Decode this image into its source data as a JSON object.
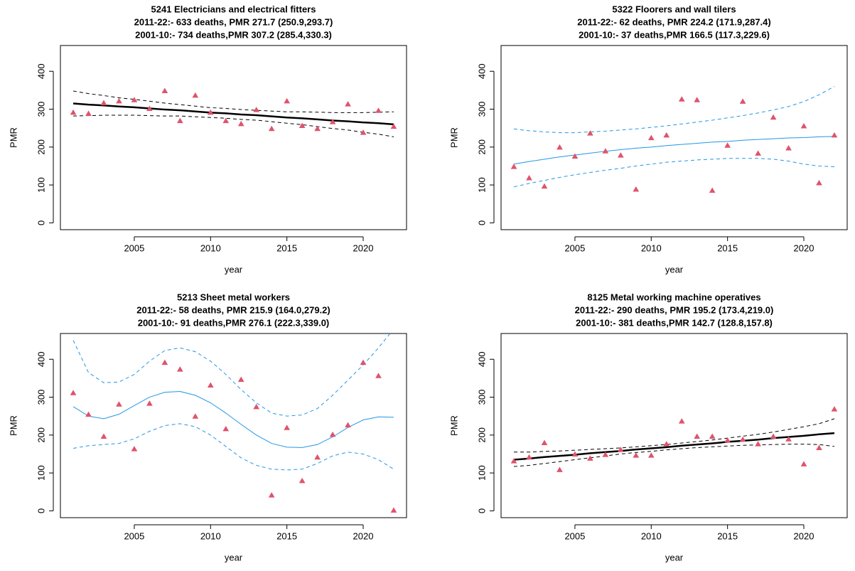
{
  "chart_data": [
    {
      "type": "scatter",
      "title": "5241 Electricians and electrical fitters",
      "subtitle": [
        "2011-22:- 633 deaths, PMR 271.7 (250.9,293.7)",
        "2001-10:- 734 deaths,PMR 307.2 (285.4,330.3)"
      ],
      "xlabel": "year",
      "ylabel": "PMR",
      "marker": "triangle",
      "color": "#DF536B",
      "x": [
        2001,
        2002,
        2003,
        2004,
        2005,
        2006,
        2007,
        2008,
        2009,
        2010,
        2011,
        2012,
        2013,
        2014,
        2015,
        2016,
        2017,
        2018,
        2019,
        2020,
        2021,
        2022
      ],
      "values": [
        290,
        287,
        315,
        320,
        323,
        300,
        347,
        268,
        335,
        290,
        268,
        260,
        297,
        247,
        320,
        255,
        247,
        265,
        312,
        237,
        295,
        253
      ],
      "series": [
        {
          "color": "#000000",
          "dash": "solid",
          "width": 2.5,
          "values": [
            315,
            312,
            310,
            307,
            305,
            302,
            299,
            297,
            294,
            291,
            289,
            286,
            284,
            281,
            278,
            276,
            273,
            270,
            268,
            265,
            263,
            260
          ]
        },
        {
          "color": "#000000",
          "dash": "dashed",
          "width": 1,
          "values": [
            348,
            341,
            336,
            330,
            326,
            321,
            316,
            312,
            308,
            304,
            302,
            299,
            297,
            295,
            293,
            293,
            292,
            291,
            291,
            291,
            292,
            293
          ]
        },
        {
          "color": "#000000",
          "dash": "dashed",
          "width": 1,
          "values": [
            282,
            283,
            284,
            284,
            284,
            283,
            282,
            282,
            280,
            278,
            276,
            273,
            271,
            267,
            263,
            259,
            254,
            249,
            245,
            239,
            234,
            227
          ]
        }
      ],
      "xlim": [
        2000.16,
        2022.84
      ],
      "ylim": [
        -18,
        468
      ],
      "xticks": [
        2005,
        2010,
        2015,
        2020
      ],
      "yticks": [
        0,
        100,
        200,
        300,
        400
      ]
    },
    {
      "type": "scatter",
      "title": "5322 Floorers and wall tilers",
      "subtitle": [
        "2011-22:- 62 deaths, PMR 224.2 (171.9,287.4)",
        "2001-10:- 37 deaths,PMR 166.5 (117.3,229.6)"
      ],
      "xlabel": "year",
      "ylabel": "PMR",
      "marker": "triangle",
      "color": "#DF536B",
      "x": [
        2001,
        2002,
        2003,
        2004,
        2005,
        2006,
        2007,
        2008,
        2009,
        2010,
        2011,
        2012,
        2013,
        2014,
        2015,
        2016,
        2017,
        2018,
        2019,
        2020,
        2021,
        2022
      ],
      "values": [
        147,
        117,
        95,
        198,
        174,
        235,
        188,
        177,
        87,
        223,
        230,
        325,
        323,
        84,
        203,
        319,
        182,
        277,
        196,
        254,
        104,
        230
      ],
      "series": [
        {
          "color": "#2297E6",
          "dash": "solid",
          "width": 1,
          "values": [
            155,
            162,
            168,
            174,
            179,
            184,
            189,
            193,
            197,
            200,
            204,
            207,
            210,
            213,
            215,
            218,
            220,
            222,
            224,
            225,
            227,
            228
          ]
        },
        {
          "color": "#2297E6",
          "dash": "dashed",
          "width": 1,
          "values": [
            248,
            243,
            240,
            238,
            238,
            240,
            242,
            245,
            248,
            252,
            256,
            261,
            266,
            271,
            277,
            283,
            290,
            298,
            307,
            320,
            338,
            360
          ]
        },
        {
          "color": "#2297E6",
          "dash": "dashed",
          "width": 1,
          "values": [
            95,
            104,
            112,
            120,
            127,
            133,
            139,
            144,
            150,
            155,
            160,
            163,
            166,
            168,
            170,
            170,
            170,
            168,
            163,
            155,
            150,
            148
          ]
        }
      ],
      "xlim": [
        2000.16,
        2022.84
      ],
      "ylim": [
        -18,
        468
      ],
      "xticks": [
        2005,
        2010,
        2015,
        2020
      ],
      "yticks": [
        0,
        100,
        200,
        300,
        400
      ]
    },
    {
      "type": "scatter",
      "title": "5213 Sheet metal workers",
      "subtitle": [
        "2011-22:- 58 deaths, PMR 215.9 (164.0,279.2)",
        "2001-10:- 91 deaths,PMR 276.1 (222.3,339.0)"
      ],
      "xlabel": "year",
      "ylabel": "PMR",
      "marker": "triangle",
      "color": "#DF536B",
      "x": [
        2001,
        2002,
        2003,
        2004,
        2005,
        2006,
        2007,
        2008,
        2009,
        2010,
        2011,
        2012,
        2013,
        2014,
        2015,
        2016,
        2017,
        2018,
        2019,
        2020,
        2021,
        2022
      ],
      "values": [
        310,
        253,
        195,
        280,
        162,
        282,
        390,
        372,
        248,
        330,
        215,
        345,
        273,
        40,
        218,
        78,
        140,
        200,
        225,
        390,
        355,
        0
      ],
      "series": [
        {
          "color": "#2297E6",
          "dash": "solid",
          "width": 1,
          "values": [
            275,
            250,
            243,
            255,
            278,
            300,
            313,
            315,
            305,
            285,
            258,
            228,
            200,
            178,
            168,
            167,
            175,
            195,
            220,
            240,
            248,
            247
          ]
        },
        {
          "color": "#2297E6",
          "dash": "dashed",
          "width": 1,
          "values": [
            450,
            365,
            338,
            340,
            360,
            395,
            423,
            430,
            420,
            395,
            360,
            320,
            285,
            258,
            250,
            253,
            270,
            305,
            345,
            385,
            430,
            480
          ]
        },
        {
          "color": "#2297E6",
          "dash": "dashed",
          "width": 1,
          "values": [
            165,
            172,
            175,
            178,
            190,
            210,
            225,
            230,
            222,
            200,
            170,
            140,
            120,
            110,
            108,
            110,
            125,
            145,
            155,
            150,
            135,
            110
          ]
        }
      ],
      "xlim": [
        2000.16,
        2022.84
      ],
      "ylim": [
        -18,
        468
      ],
      "xticks": [
        2005,
        2010,
        2015,
        2020
      ],
      "yticks": [
        0,
        100,
        200,
        300,
        400
      ]
    },
    {
      "type": "scatter",
      "title": "8125 Metal working machine operatives",
      "subtitle": [
        "2011-22:- 290 deaths, PMR 195.2 (173.4,219.0)",
        "2001-10:- 381 deaths,PMR 142.7 (128.8,157.8)"
      ],
      "xlabel": "year",
      "ylabel": "PMR",
      "marker": "triangle",
      "color": "#DF536B",
      "x": [
        2001,
        2002,
        2003,
        2004,
        2005,
        2006,
        2007,
        2008,
        2009,
        2010,
        2011,
        2012,
        2013,
        2014,
        2015,
        2016,
        2017,
        2018,
        2019,
        2020,
        2021,
        2022
      ],
      "values": [
        130,
        140,
        178,
        107,
        148,
        137,
        147,
        160,
        145,
        145,
        175,
        235,
        195,
        195,
        185,
        187,
        175,
        195,
        188,
        122,
        165,
        267
      ],
      "series": [
        {
          "color": "#000000",
          "dash": "solid",
          "width": 2.5,
          "values": [
            135,
            138,
            142,
            145,
            148,
            152,
            155,
            158,
            162,
            165,
            168,
            172,
            175,
            178,
            182,
            185,
            188,
            192,
            195,
            198,
            202,
            205
          ]
        },
        {
          "color": "#000000",
          "dash": "dashed",
          "width": 1,
          "values": [
            155,
            155,
            157,
            158,
            160,
            162,
            164,
            166,
            169,
            172,
            175,
            179,
            183,
            187,
            192,
            197,
            202,
            208,
            215,
            222,
            230,
            243
          ]
        },
        {
          "color": "#000000",
          "dash": "dashed",
          "width": 1,
          "values": [
            117,
            120,
            125,
            130,
            135,
            140,
            145,
            150,
            154,
            157,
            161,
            164,
            167,
            169,
            171,
            173,
            174,
            175,
            176,
            176,
            175,
            170
          ]
        }
      ],
      "xlim": [
        2000.16,
        2022.84
      ],
      "ylim": [
        -18,
        468
      ],
      "xticks": [
        2005,
        2010,
        2015,
        2020
      ],
      "yticks": [
        0,
        100,
        200,
        300,
        400
      ]
    }
  ]
}
